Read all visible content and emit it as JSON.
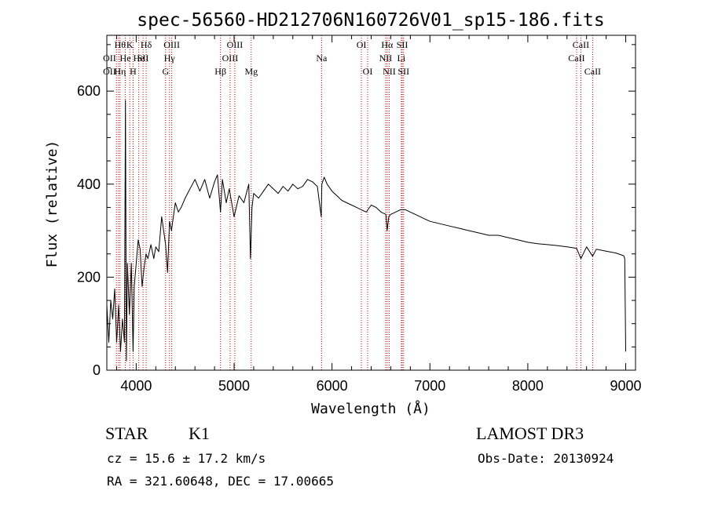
{
  "chart_data": {
    "type": "line",
    "title": "spec-56560-HD212706N160726V01_sp15-186.fits",
    "xlabel": "Wavelength (Å)",
    "ylabel": "Flux (relative)",
    "xlim": [
      3700,
      9100
    ],
    "ylim": [
      0,
      720
    ],
    "xticks": [
      4000,
      5000,
      6000,
      7000,
      8000,
      9000
    ],
    "xtick_labels": [
      "4000",
      "5000",
      "6000",
      "7000",
      "8000",
      "9000"
    ],
    "yticks": [
      0,
      200,
      400,
      600
    ],
    "ytick_labels": [
      "0",
      "200",
      "400",
      "600"
    ],
    "series": [
      {
        "name": "spectrum",
        "x": [
          3700,
          3720,
          3740,
          3760,
          3780,
          3800,
          3820,
          3840,
          3860,
          3880,
          3890,
          3900,
          3910,
          3930,
          3950,
          3968,
          3980,
          4000,
          4020,
          4040,
          4060,
          4080,
          4100,
          4120,
          4150,
          4180,
          4200,
          4230,
          4260,
          4280,
          4300,
          4320,
          4340,
          4360,
          4380,
          4400,
          4430,
          4460,
          4500,
          4550,
          4600,
          4650,
          4700,
          4750,
          4800,
          4830,
          4861,
          4880,
          4920,
          4950,
          5000,
          5050,
          5100,
          5150,
          5167,
          5183,
          5200,
          5250,
          5300,
          5350,
          5400,
          5450,
          5500,
          5550,
          5600,
          5650,
          5700,
          5750,
          5800,
          5850,
          5890,
          5896,
          5920,
          5950,
          6000,
          6050,
          6100,
          6150,
          6200,
          6250,
          6300,
          6350,
          6400,
          6450,
          6500,
          6550,
          6563,
          6580,
          6600,
          6650,
          6700,
          6750,
          6800,
          6850,
          6900,
          6950,
          7000,
          7100,
          7200,
          7300,
          7400,
          7500,
          7600,
          7700,
          7800,
          7900,
          8000,
          8100,
          8200,
          8300,
          8400,
          8498,
          8542,
          8600,
          8662,
          8700,
          8800,
          8900,
          8980,
          8990,
          9000
        ],
        "values": [
          140,
          60,
          150,
          110,
          175,
          60,
          140,
          40,
          110,
          60,
          580,
          20,
          230,
          120,
          230,
          40,
          180,
          230,
          280,
          260,
          180,
          220,
          250,
          240,
          270,
          240,
          265,
          255,
          330,
          300,
          270,
          210,
          320,
          300,
          330,
          360,
          340,
          350,
          370,
          390,
          410,
          385,
          410,
          370,
          405,
          420,
          340,
          410,
          360,
          390,
          330,
          375,
          360,
          400,
          240,
          350,
          380,
          370,
          385,
          400,
          390,
          380,
          395,
          385,
          400,
          390,
          395,
          410,
          405,
          395,
          330,
          400,
          415,
          400,
          385,
          375,
          365,
          360,
          355,
          350,
          345,
          340,
          355,
          350,
          340,
          335,
          300,
          330,
          335,
          340,
          345,
          345,
          340,
          335,
          330,
          325,
          320,
          315,
          310,
          305,
          300,
          295,
          290,
          290,
          285,
          280,
          275,
          272,
          270,
          268,
          265,
          262,
          240,
          265,
          245,
          260,
          256,
          252,
          246,
          240,
          40
        ]
      }
    ],
    "vlines": [
      {
        "x": 3798,
        "color": "#cc0000"
      },
      {
        "x": 3820,
        "color": "#cc0000"
      },
      {
        "x": 3835,
        "color": "#cc0000"
      },
      {
        "x": 3889,
        "color": "#cc0000"
      },
      {
        "x": 3934,
        "color": "#cc0000"
      },
      {
        "x": 3968,
        "color": "#cc0000"
      },
      {
        "x": 4026,
        "color": "#cc0000"
      },
      {
        "x": 4070,
        "color": "#cc0000"
      },
      {
        "x": 4102,
        "color": "#cc0000"
      },
      {
        "x": 4300,
        "color": "#cc0000"
      },
      {
        "x": 4340,
        "color": "#cc0000"
      },
      {
        "x": 4363,
        "color": "#cc0000"
      },
      {
        "x": 4861,
        "color": "#cc0000"
      },
      {
        "x": 4959,
        "color": "#cc0000"
      },
      {
        "x": 5007,
        "color": "#cc0000"
      },
      {
        "x": 5175,
        "color": "#cc0000"
      },
      {
        "x": 5893,
        "color": "#cc0000"
      },
      {
        "x": 6300,
        "color": "#cc0000"
      },
      {
        "x": 6364,
        "color": "#cc0000"
      },
      {
        "x": 6548,
        "color": "#cc0000"
      },
      {
        "x": 6563,
        "color": "#cc0000"
      },
      {
        "x": 6584,
        "color": "#cc0000"
      },
      {
        "x": 6708,
        "color": "#cc0000"
      },
      {
        "x": 6717,
        "color": "#cc0000"
      },
      {
        "x": 6731,
        "color": "#cc0000"
      },
      {
        "x": 8498,
        "color": "#cc0000"
      },
      {
        "x": 8542,
        "color": "#cc0000"
      },
      {
        "x": 8662,
        "color": "#cc0000"
      }
    ],
    "line_labels": [
      {
        "x": 3835,
        "row": 1,
        "text": "Hθ"
      },
      {
        "x": 3934,
        "row": 1,
        "text": "K"
      },
      {
        "x": 4102,
        "row": 1,
        "text": "Hδ"
      },
      {
        "x": 4363,
        "row": 1,
        "text": "OIII"
      },
      {
        "x": 5007,
        "row": 1,
        "text": "OIII"
      },
      {
        "x": 6300,
        "row": 1,
        "text": "OI"
      },
      {
        "x": 6563,
        "row": 1,
        "text": "Hα"
      },
      {
        "x": 6717,
        "row": 1,
        "text": "SII"
      },
      {
        "x": 8542,
        "row": 1,
        "text": "CaII"
      },
      {
        "x": 3728,
        "row": 2,
        "text": "OII"
      },
      {
        "x": 3889,
        "row": 2,
        "text": "He"
      },
      {
        "x": 4026,
        "row": 2,
        "text": "He"
      },
      {
        "x": 4070,
        "row": 2,
        "text": "SII"
      },
      {
        "x": 4340,
        "row": 2,
        "text": "Hγ"
      },
      {
        "x": 4959,
        "row": 2,
        "text": "OIII"
      },
      {
        "x": 5893,
        "row": 2,
        "text": "Na"
      },
      {
        "x": 6548,
        "row": 2,
        "text": "NII"
      },
      {
        "x": 6708,
        "row": 2,
        "text": "Li"
      },
      {
        "x": 8498,
        "row": 2,
        "text": "CaII"
      },
      {
        "x": 3728,
        "row": 3,
        "text": "OII"
      },
      {
        "x": 3835,
        "row": 3,
        "text": "Hη"
      },
      {
        "x": 3968,
        "row": 3,
        "text": "H"
      },
      {
        "x": 4300,
        "row": 3,
        "text": "G"
      },
      {
        "x": 4861,
        "row": 3,
        "text": "Hβ"
      },
      {
        "x": 5175,
        "row": 3,
        "text": "Mg"
      },
      {
        "x": 6364,
        "row": 3,
        "text": "OI"
      },
      {
        "x": 6584,
        "row": 3,
        "text": "NII"
      },
      {
        "x": 6731,
        "row": 3,
        "text": "SII"
      },
      {
        "x": 8662,
        "row": 3,
        "text": "CaII"
      }
    ]
  },
  "info": {
    "class": "STAR",
    "subclass": "K1",
    "survey": "LAMOST DR3",
    "cz": "cz = 15.6 ± 17.2 km/s",
    "obs_date": "Obs-Date: 20130924",
    "radec": "RA = 321.60648, DEC =  17.00665"
  }
}
